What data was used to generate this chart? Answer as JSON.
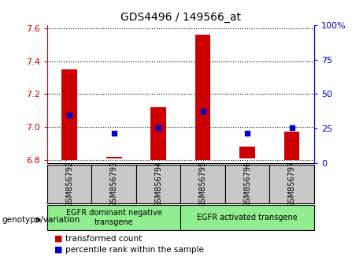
{
  "title": "GDS4496 / 149566_at",
  "samples": [
    "GSM856792",
    "GSM856793",
    "GSM856794",
    "GSM856795",
    "GSM856796",
    "GSM856797"
  ],
  "red_bars_bottom": [
    6.8,
    6.81,
    6.8,
    6.8,
    6.81,
    6.8
  ],
  "red_bars_top": [
    7.35,
    6.82,
    7.12,
    7.56,
    6.88,
    6.97
  ],
  "blue_dots_pct": [
    35,
    22,
    26,
    38,
    22,
    26
  ],
  "ylim_left": [
    6.78,
    7.62
  ],
  "ylim_right": [
    0,
    100
  ],
  "yticks_left": [
    6.8,
    7.0,
    7.2,
    7.4,
    7.6
  ],
  "yticks_right": [
    0,
    25,
    50,
    75,
    100
  ],
  "ytick_labels_right": [
    "0",
    "25",
    "50",
    "75",
    "100%"
  ],
  "group_box_color": "#c8c8c8",
  "green_color": "#90ee90",
  "bar_color": "#cc0000",
  "dot_color": "#0000cc",
  "grid_color": "#000000",
  "left_axis_color": "#cc0000",
  "right_axis_color": "#0000cc",
  "legend_red_label": "transformed count",
  "legend_blue_label": "percentile rank within the sample",
  "xlabel_text": "genotype/variation",
  "bar_width": 0.35,
  "group1_label": "EGFR dominant negative\ntransgene",
  "group2_label": "EGFR activated transgene"
}
